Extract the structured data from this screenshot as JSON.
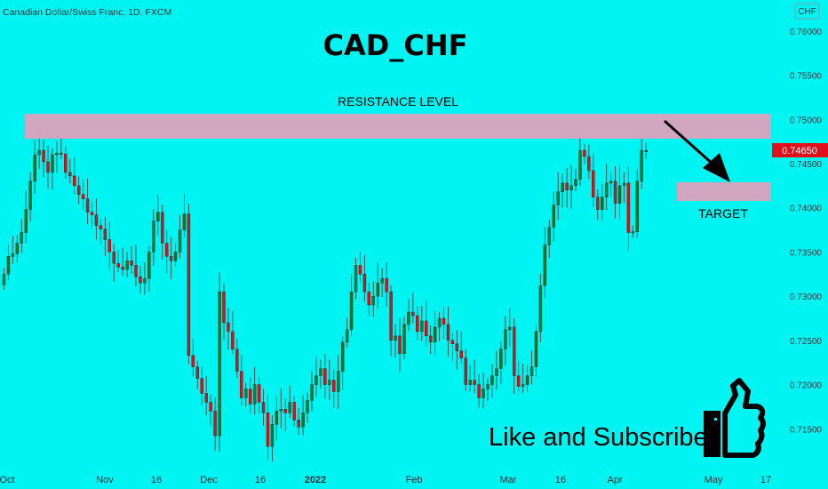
{
  "header": {
    "symbol_text": "Canadian Dollar/Swiss Franc, 1D, FXCM",
    "currency_badge": "CHF"
  },
  "annotations": {
    "title": "CAD_CHF",
    "resistance_label": "RESISTANCE LEVEL",
    "target_label": "TARGET",
    "cta_text": "Like and Subscribe"
  },
  "colors": {
    "background": "#00F5F2",
    "candle_up": "#0A7A2F",
    "candle_down": "#E0101A",
    "wick": "#555555",
    "zone": "#D9A3BE",
    "price_tag": "#E0101A",
    "arrow": "#000000"
  },
  "icons": [
    "thumbs-up-icon",
    "arrow-down-right-icon"
  ],
  "chart_data": {
    "type": "candlestick",
    "title": "CAD_CHF",
    "y_axis": {
      "min": 0.7105,
      "max": 0.7625,
      "ticks": [
        "0.76000",
        "0.75500",
        "0.75000",
        "0.74500",
        "0.74000",
        "0.73500",
        "0.73000",
        "0.72500",
        "0.72000",
        "0.71500"
      ],
      "position": "right"
    },
    "x_axis": {
      "ticks": [
        "Oct",
        "Nov",
        "16",
        "Dec",
        "16",
        "2022",
        "Feb",
        "Mar",
        "16",
        "Apr",
        "May",
        "17"
      ],
      "bold_tick": "2022"
    },
    "last_price": "0.74650",
    "resistance_zone": [
      0.7478,
      0.7507
    ],
    "target_zone": [
      0.7407,
      0.7428
    ],
    "closes": [
      0.7325,
      0.7345,
      0.7348,
      0.736,
      0.7372,
      0.7398,
      0.743,
      0.746,
      0.7465,
      0.7452,
      0.744,
      0.746,
      0.7462,
      0.7461,
      0.744,
      0.7436,
      0.7425,
      0.7415,
      0.741,
      0.7395,
      0.7392,
      0.738,
      0.7376,
      0.7364,
      0.735,
      0.7337,
      0.7333,
      0.733,
      0.734,
      0.7335,
      0.7322,
      0.7315,
      0.732,
      0.735,
      0.7385,
      0.7395,
      0.736,
      0.7345,
      0.734,
      0.735,
      0.7375,
      0.7393,
      0.7233,
      0.722,
      0.7207,
      0.719,
      0.718,
      0.717,
      0.7142,
      0.7305,
      0.727,
      0.726,
      0.724,
      0.7215,
      0.7185,
      0.7195,
      0.7178,
      0.72,
      0.718,
      0.7168,
      0.713,
      0.7155,
      0.717,
      0.7172,
      0.7168,
      0.718,
      0.716,
      0.7152,
      0.7168,
      0.7182,
      0.72,
      0.721,
      0.7218,
      0.72,
      0.7205,
      0.7192,
      0.7215,
      0.7248,
      0.7262,
      0.7305,
      0.7335,
      0.7325,
      0.7305,
      0.729,
      0.73,
      0.7315,
      0.732,
      0.7305,
      0.725,
      0.7255,
      0.7235,
      0.7268,
      0.7282,
      0.7278,
      0.726,
      0.7272,
      0.7255,
      0.7248,
      0.7265,
      0.7275,
      0.7268,
      0.725,
      0.7246,
      0.7238,
      0.723,
      0.72,
      0.7205,
      0.72,
      0.7185,
      0.7195,
      0.72,
      0.721,
      0.7218,
      0.724,
      0.7262,
      0.7265,
      0.721,
      0.7198,
      0.72,
      0.721,
      0.722,
      0.726,
      0.7312,
      0.7358,
      0.7378,
      0.7403,
      0.7418,
      0.7428,
      0.742,
      0.7425,
      0.7432,
      0.7465,
      0.7458,
      0.7442,
      0.7412,
      0.7398,
      0.7412,
      0.7428,
      0.743,
      0.7405,
      0.7425,
      0.7428,
      0.7372,
      0.7373,
      0.743,
      0.7465,
      0.7465
    ]
  }
}
